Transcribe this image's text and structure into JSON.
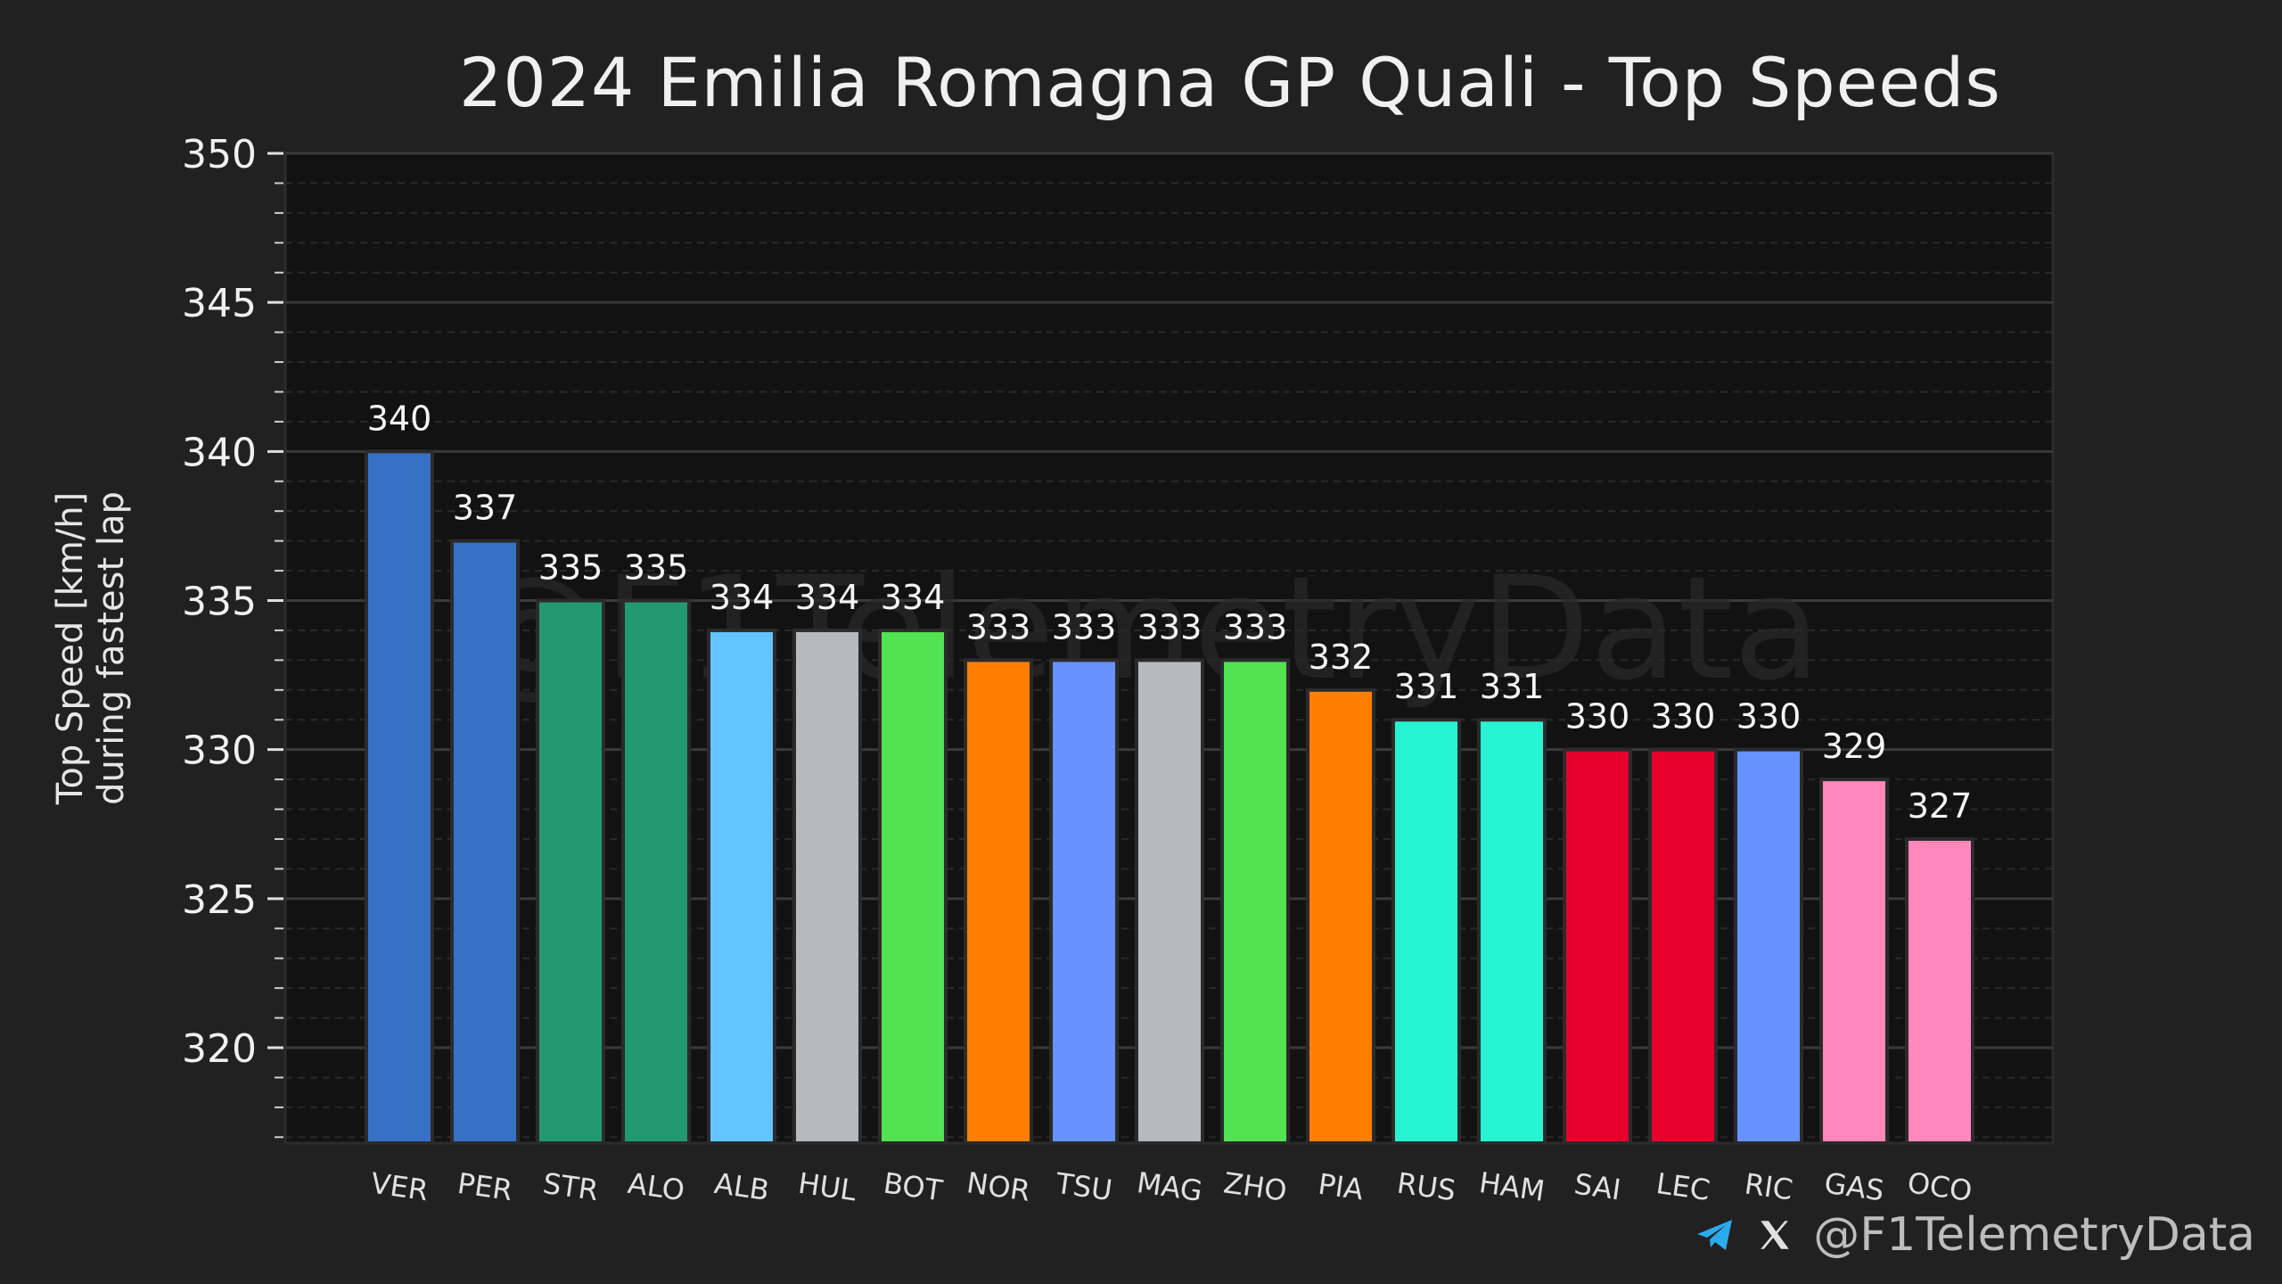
{
  "chart_data": {
    "type": "bar",
    "title": "2024 Emilia Romagna GP Quali - Top Speeds",
    "ylabel_line1": "Top Speed [km/h]",
    "ylabel_line2": "during fastest lap",
    "xlabel": "",
    "ylim": [
      316.8,
      350
    ],
    "yticks": [
      320,
      325,
      330,
      335,
      340,
      345,
      350
    ],
    "grid": true,
    "categories": [
      "VER",
      "PER",
      "STR",
      "ALO",
      "ALB",
      "HUL",
      "BOT",
      "NOR",
      "TSU",
      "MAG",
      "ZHO",
      "PIA",
      "RUS",
      "HAM",
      "SAI",
      "LEC",
      "RIC",
      "GAS",
      "OCO"
    ],
    "values": [
      340,
      337,
      335,
      335,
      334,
      334,
      334,
      333,
      333,
      333,
      333,
      332,
      331,
      331,
      330,
      330,
      330,
      329,
      327
    ],
    "colors": [
      "#3671C6",
      "#3671C6",
      "#229971",
      "#229971",
      "#64C4FF",
      "#B6BABD",
      "#52E252",
      "#FF8000",
      "#6692FF",
      "#B6BABD",
      "#52E252",
      "#FF8000",
      "#27F4D2",
      "#27F4D2",
      "#E8002D",
      "#E8002D",
      "#6692FF",
      "#FF87BC",
      "#FF87BC"
    ]
  },
  "watermark": "@F1TelemetryData",
  "footer": {
    "handle": "@F1TelemetryData",
    "telegram_icon": "telegram-icon",
    "x_icon": "x-logo-icon",
    "telegram_color": "#2AABEE"
  }
}
